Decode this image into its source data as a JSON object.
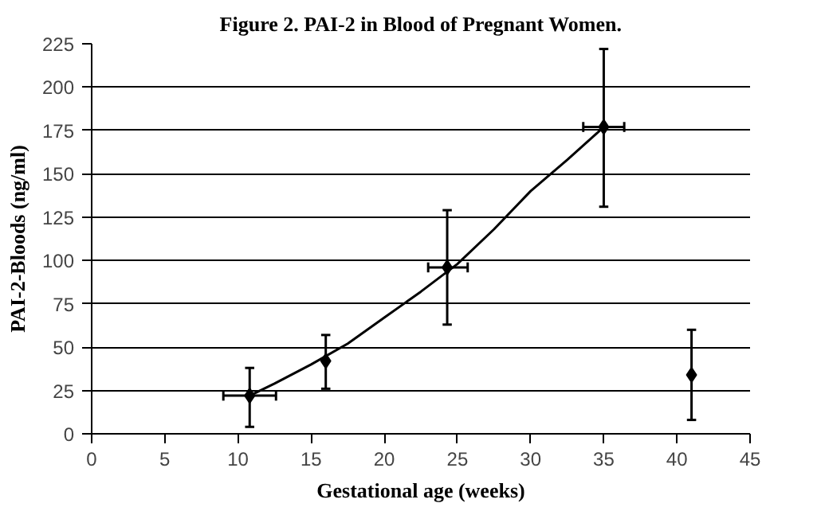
{
  "chart_data": {
    "type": "scatter",
    "title": "Figure 2. PAI-2 in Blood of Pregnant Women.",
    "xlabel": "Gestational age (weeks)",
    "ylabel": "PAI-2-Bloods (ng/ml)",
    "xlim": [
      0,
      45
    ],
    "xticks": [
      0,
      5,
      10,
      15,
      20,
      25,
      30,
      35,
      40,
      45
    ],
    "ylim": [
      0,
      225
    ],
    "yticks": [
      0,
      25,
      50,
      75,
      100,
      125,
      150,
      175,
      200,
      225
    ],
    "grid": "y",
    "series": [
      {
        "color": "#000000",
        "marker": "diamond",
        "x": [
          10.8,
          16,
          24.3,
          35,
          41
        ],
        "values": [
          22,
          42,
          96,
          177,
          34
        ],
        "errors": [
          [
            4,
            38
          ],
          [
            26,
            57
          ],
          [
            63,
            129
          ],
          [
            131,
            222
          ],
          [
            8,
            60
          ]
        ],
        "xerrors": [
          [
            9,
            12.6
          ],
          null,
          [
            23,
            25.7
          ],
          [
            33.6,
            36.4
          ],
          null
        ]
      },
      {
        "type": "line",
        "color": "#000000",
        "marker": "none",
        "x": [
          10.8,
          12.5,
          15,
          17.5,
          20,
          22.5,
          25,
          27.5,
          30,
          32.5,
          35
        ],
        "values": [
          22,
          29,
          40,
          52,
          67,
          82,
          98,
          118,
          140,
          158,
          177
        ]
      }
    ]
  }
}
